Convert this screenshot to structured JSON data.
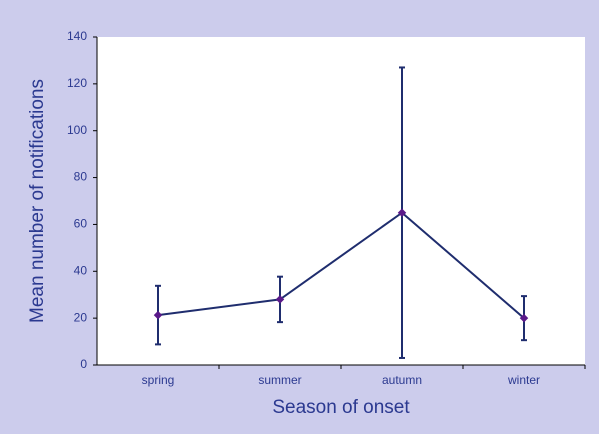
{
  "chart_data": {
    "type": "line",
    "x_label": "Season of onset",
    "y_label": "Mean number of notifications",
    "categories": [
      "spring",
      "summer",
      "autumn",
      "winter"
    ],
    "series": [
      {
        "color": "#1f2d6e",
        "marker_color": "#5a1a8a",
        "values": [
          21.3,
          28,
          65,
          20
        ],
        "errors": [
          12.5,
          9.7,
          62,
          9.4
        ]
      }
    ],
    "ylim": [
      0,
      140
    ],
    "yticks": [
      0,
      20,
      40,
      60,
      80,
      100,
      120,
      140
    ],
    "grid": false
  }
}
